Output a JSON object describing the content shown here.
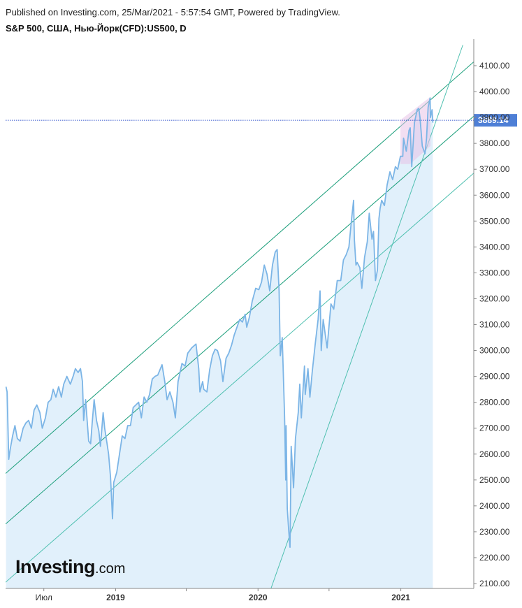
{
  "header": {
    "published": "Published on Investing.com, 25/Mar/2021 - 5:57:54 GMT, Powered by TradingView.",
    "symbol": "S&P 500, США, Нью-Йорк(CFD):US500, D"
  },
  "logo": {
    "brand": "Investing",
    "domain": ".com"
  },
  "colors": {
    "price_line": "#7cb5e6",
    "area_fill": "#e1f0fb",
    "channel_line": "#1a9e7a",
    "channel_line_light": "#4fc0b0",
    "price_label_bg": "#4e7fd6",
    "current_price_dotted": "#3355cc",
    "highlight_box": "#e7c2e8"
  },
  "chart_data": {
    "type": "line",
    "title": "S&P 500, США, Нью-Йорк(CFD):US500, D",
    "ylim": [
      2080,
      4180
    ],
    "y_ticks": [
      "4100.00",
      "4000.00",
      "3900.00",
      "3800.00",
      "3700.00",
      "3600.00",
      "3500.00",
      "3400.00",
      "3300.00",
      "3200.00",
      "3100.00",
      "3000.00",
      "2900.00",
      "2800.00",
      "2700.00",
      "2600.00",
      "2500.00",
      "2400.00",
      "2300.00",
      "2200.00",
      "2100.00"
    ],
    "x_ticks": [
      {
        "label": "Июл",
        "date": "2018-07-01",
        "bold": false
      },
      {
        "label": "2019",
        "date": "2019-01-01",
        "bold": true
      },
      {
        "label": "2020",
        "date": "2020-01-01",
        "bold": true
      },
      {
        "label": "2021",
        "date": "2021-01-01",
        "bold": true
      }
    ],
    "x_minor_ticks": [
      "2019-07-01",
      "2020-07-01"
    ],
    "xlim": [
      "2018-03-25",
      "2021-07-07"
    ],
    "current_price": 3889.14,
    "current_price_label": "3889.14",
    "series": [
      {
        "points": [
          [
            "2018-03-26",
            2860
          ],
          [
            "2018-03-29",
            2840
          ],
          [
            "2018-04-02",
            2580
          ],
          [
            "2018-04-06",
            2620
          ],
          [
            "2018-04-12",
            2670
          ],
          [
            "2018-04-18",
            2710
          ],
          [
            "2018-04-24",
            2660
          ],
          [
            "2018-05-01",
            2650
          ],
          [
            "2018-05-09",
            2700
          ],
          [
            "2018-05-16",
            2720
          ],
          [
            "2018-05-23",
            2730
          ],
          [
            "2018-05-30",
            2700
          ],
          [
            "2018-06-06",
            2770
          ],
          [
            "2018-06-13",
            2790
          ],
          [
            "2018-06-21",
            2760
          ],
          [
            "2018-06-27",
            2700
          ],
          [
            "2018-07-05",
            2740
          ],
          [
            "2018-07-12",
            2800
          ],
          [
            "2018-07-19",
            2810
          ],
          [
            "2018-07-25",
            2850
          ],
          [
            "2018-08-01",
            2820
          ],
          [
            "2018-08-08",
            2860
          ],
          [
            "2018-08-15",
            2820
          ],
          [
            "2018-08-21",
            2870
          ],
          [
            "2018-08-29",
            2900
          ],
          [
            "2018-09-07",
            2870
          ],
          [
            "2018-09-14",
            2900
          ],
          [
            "2018-09-20",
            2930
          ],
          [
            "2018-09-27",
            2915
          ],
          [
            "2018-10-03",
            2930
          ],
          [
            "2018-10-08",
            2880
          ],
          [
            "2018-10-11",
            2730
          ],
          [
            "2018-10-16",
            2810
          ],
          [
            "2018-10-24",
            2650
          ],
          [
            "2018-10-29",
            2640
          ],
          [
            "2018-11-02",
            2720
          ],
          [
            "2018-11-07",
            2810
          ],
          [
            "2018-11-13",
            2730
          ],
          [
            "2018-11-19",
            2690
          ],
          [
            "2018-11-23",
            2630
          ],
          [
            "2018-11-30",
            2760
          ],
          [
            "2018-12-04",
            2700
          ],
          [
            "2018-12-10",
            2640
          ],
          [
            "2018-12-14",
            2600
          ],
          [
            "2018-12-19",
            2510
          ],
          [
            "2018-12-24",
            2350
          ],
          [
            "2018-12-27",
            2490
          ],
          [
            "2019-01-04",
            2530
          ],
          [
            "2019-01-11",
            2600
          ],
          [
            "2019-01-18",
            2670
          ],
          [
            "2019-01-25",
            2660
          ],
          [
            "2019-02-01",
            2710
          ],
          [
            "2019-02-08",
            2710
          ],
          [
            "2019-02-15",
            2780
          ],
          [
            "2019-02-22",
            2790
          ],
          [
            "2019-03-01",
            2800
          ],
          [
            "2019-03-08",
            2740
          ],
          [
            "2019-03-15",
            2820
          ],
          [
            "2019-03-22",
            2800
          ],
          [
            "2019-03-29",
            2830
          ],
          [
            "2019-04-05",
            2890
          ],
          [
            "2019-04-12",
            2900
          ],
          [
            "2019-04-19",
            2905
          ],
          [
            "2019-04-30",
            2945
          ],
          [
            "2019-05-07",
            2880
          ],
          [
            "2019-05-13",
            2810
          ],
          [
            "2019-05-20",
            2840
          ],
          [
            "2019-05-28",
            2800
          ],
          [
            "2019-06-03",
            2740
          ],
          [
            "2019-06-10",
            2880
          ],
          [
            "2019-06-20",
            2950
          ],
          [
            "2019-06-28",
            2940
          ],
          [
            "2019-07-05",
            2990
          ],
          [
            "2019-07-15",
            3010
          ],
          [
            "2019-07-26",
            3025
          ],
          [
            "2019-08-02",
            2930
          ],
          [
            "2019-08-05",
            2840
          ],
          [
            "2019-08-12",
            2880
          ],
          [
            "2019-08-15",
            2850
          ],
          [
            "2019-08-23",
            2840
          ],
          [
            "2019-08-30",
            2925
          ],
          [
            "2019-09-06",
            2980
          ],
          [
            "2019-09-13",
            3005
          ],
          [
            "2019-09-19",
            3000
          ],
          [
            "2019-09-27",
            2960
          ],
          [
            "2019-10-03",
            2880
          ],
          [
            "2019-10-11",
            2970
          ],
          [
            "2019-10-18",
            2990
          ],
          [
            "2019-10-25",
            3020
          ],
          [
            "2019-11-01",
            3060
          ],
          [
            "2019-11-08",
            3090
          ],
          [
            "2019-11-15",
            3120
          ],
          [
            "2019-11-22",
            3110
          ],
          [
            "2019-11-29",
            3140
          ],
          [
            "2019-12-03",
            3090
          ],
          [
            "2019-12-10",
            3130
          ],
          [
            "2019-12-17",
            3190
          ],
          [
            "2019-12-26",
            3240
          ],
          [
            "2020-01-03",
            3235
          ],
          [
            "2020-01-10",
            3265
          ],
          [
            "2020-01-17",
            3330
          ],
          [
            "2020-01-24",
            3295
          ],
          [
            "2020-01-31",
            3230
          ],
          [
            "2020-02-07",
            3330
          ],
          [
            "2020-02-14",
            3380
          ],
          [
            "2020-02-19",
            3390
          ],
          [
            "2020-02-24",
            3230
          ],
          [
            "2020-02-27",
            2980
          ],
          [
            "2020-03-03",
            3050
          ],
          [
            "2020-03-09",
            2750
          ],
          [
            "2020-03-12",
            2500
          ],
          [
            "2020-03-13",
            2710
          ],
          [
            "2020-03-16",
            2390
          ],
          [
            "2020-03-20",
            2300
          ],
          [
            "2020-03-23",
            2240
          ],
          [
            "2020-03-26",
            2630
          ],
          [
            "2020-04-01",
            2470
          ],
          [
            "2020-04-06",
            2660
          ],
          [
            "2020-04-13",
            2760
          ],
          [
            "2020-04-17",
            2870
          ],
          [
            "2020-04-21",
            2740
          ],
          [
            "2020-04-29",
            2940
          ],
          [
            "2020-05-01",
            2830
          ],
          [
            "2020-05-08",
            2930
          ],
          [
            "2020-05-13",
            2820
          ],
          [
            "2020-05-19",
            2920
          ],
          [
            "2020-05-27",
            3030
          ],
          [
            "2020-06-03",
            3120
          ],
          [
            "2020-06-08",
            3230
          ],
          [
            "2020-06-11",
            3000
          ],
          [
            "2020-06-16",
            3120
          ],
          [
            "2020-06-26",
            3010
          ],
          [
            "2020-07-06",
            3180
          ],
          [
            "2020-07-13",
            3160
          ],
          [
            "2020-07-22",
            3270
          ],
          [
            "2020-07-31",
            3270
          ],
          [
            "2020-08-07",
            3350
          ],
          [
            "2020-08-14",
            3370
          ],
          [
            "2020-08-21",
            3400
          ],
          [
            "2020-08-28",
            3510
          ],
          [
            "2020-09-02",
            3580
          ],
          [
            "2020-09-04",
            3430
          ],
          [
            "2020-09-08",
            3330
          ],
          [
            "2020-09-11",
            3340
          ],
          [
            "2020-09-18",
            3320
          ],
          [
            "2020-09-23",
            3240
          ],
          [
            "2020-09-30",
            3360
          ],
          [
            "2020-10-07",
            3420
          ],
          [
            "2020-10-12",
            3530
          ],
          [
            "2020-10-19",
            3430
          ],
          [
            "2020-10-23",
            3460
          ],
          [
            "2020-10-28",
            3270
          ],
          [
            "2020-11-02",
            3310
          ],
          [
            "2020-11-06",
            3510
          ],
          [
            "2020-11-09",
            3550
          ],
          [
            "2020-11-13",
            3580
          ],
          [
            "2020-11-20",
            3560
          ],
          [
            "2020-11-27",
            3640
          ],
          [
            "2020-12-04",
            3690
          ],
          [
            "2020-12-11",
            3660
          ],
          [
            "2020-12-18",
            3710
          ],
          [
            "2020-12-24",
            3700
          ],
          [
            "2020-12-31",
            3750
          ],
          [
            "2021-01-06",
            3750
          ],
          [
            "2021-01-08",
            3820
          ],
          [
            "2021-01-15",
            3770
          ],
          [
            "2021-01-22",
            3850
          ],
          [
            "2021-01-25",
            3860
          ],
          [
            "2021-01-29",
            3710
          ],
          [
            "2021-02-05",
            3880
          ],
          [
            "2021-02-12",
            3930
          ],
          [
            "2021-02-16",
            3935
          ],
          [
            "2021-02-19",
            3900
          ],
          [
            "2021-02-25",
            3790
          ],
          [
            "2021-03-04",
            3760
          ],
          [
            "2021-03-08",
            3820
          ],
          [
            "2021-03-12",
            3940
          ],
          [
            "2021-03-17",
            3975
          ],
          [
            "2021-03-18",
            3900
          ],
          [
            "2021-03-22",
            3930
          ],
          [
            "2021-03-24",
            3880
          ]
        ]
      }
    ],
    "annotations": {
      "channel_upper": [
        [
          "2018-03-25",
          2525
        ],
        [
          "2021-07-07",
          4115
        ]
      ],
      "channel_middle": [
        [
          "2018-03-25",
          2330
        ],
        [
          "2021-07-07",
          3905
        ]
      ],
      "channel_lower": [
        [
          "2018-03-25",
          2105
        ],
        [
          "2021-07-07",
          3685
        ]
      ],
      "steep_trendline": [
        [
          "2020-03-23",
          2240
        ],
        [
          "2021-06-09",
          4180
        ],
        [
          "2020-02-03",
          2080
        ]
      ],
      "highlight_box": {
        "from": "2020-12-31",
        "to": "2021-03-18",
        "low": 3720,
        "high": 3980
      }
    }
  }
}
